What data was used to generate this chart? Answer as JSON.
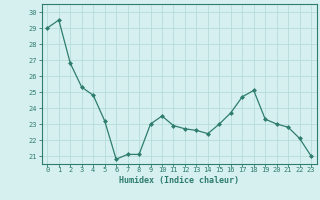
{
  "x": [
    0,
    1,
    2,
    3,
    4,
    5,
    6,
    7,
    8,
    9,
    10,
    11,
    12,
    13,
    14,
    15,
    16,
    17,
    18,
    19,
    20,
    21,
    22,
    23
  ],
  "y": [
    29,
    29.5,
    26.8,
    25.3,
    24.8,
    23.2,
    20.8,
    21.1,
    21.1,
    23.0,
    23.5,
    22.9,
    22.7,
    22.6,
    22.4,
    23.0,
    23.7,
    24.7,
    25.1,
    23.3,
    23.0,
    22.8,
    22.1,
    21.0
  ],
  "xlabel": "Humidex (Indice chaleur)",
  "ylim": [
    20.5,
    30.5
  ],
  "xlim": [
    -0.5,
    23.5
  ],
  "yticks": [
    21,
    22,
    23,
    24,
    25,
    26,
    27,
    28,
    29,
    30
  ],
  "xticks": [
    0,
    1,
    2,
    3,
    4,
    5,
    6,
    7,
    8,
    9,
    10,
    11,
    12,
    13,
    14,
    15,
    16,
    17,
    18,
    19,
    20,
    21,
    22,
    23
  ],
  "line_color": "#2e7d6e",
  "marker": "D",
  "marker_size": 2,
  "bg_color": "#d6f0ef",
  "grid_color": "#b0d8d5",
  "tick_color": "#2e7d6e",
  "label_color": "#2e7d6e",
  "font_name": "monospace",
  "tick_fontsize": 5,
  "xlabel_fontsize": 6
}
